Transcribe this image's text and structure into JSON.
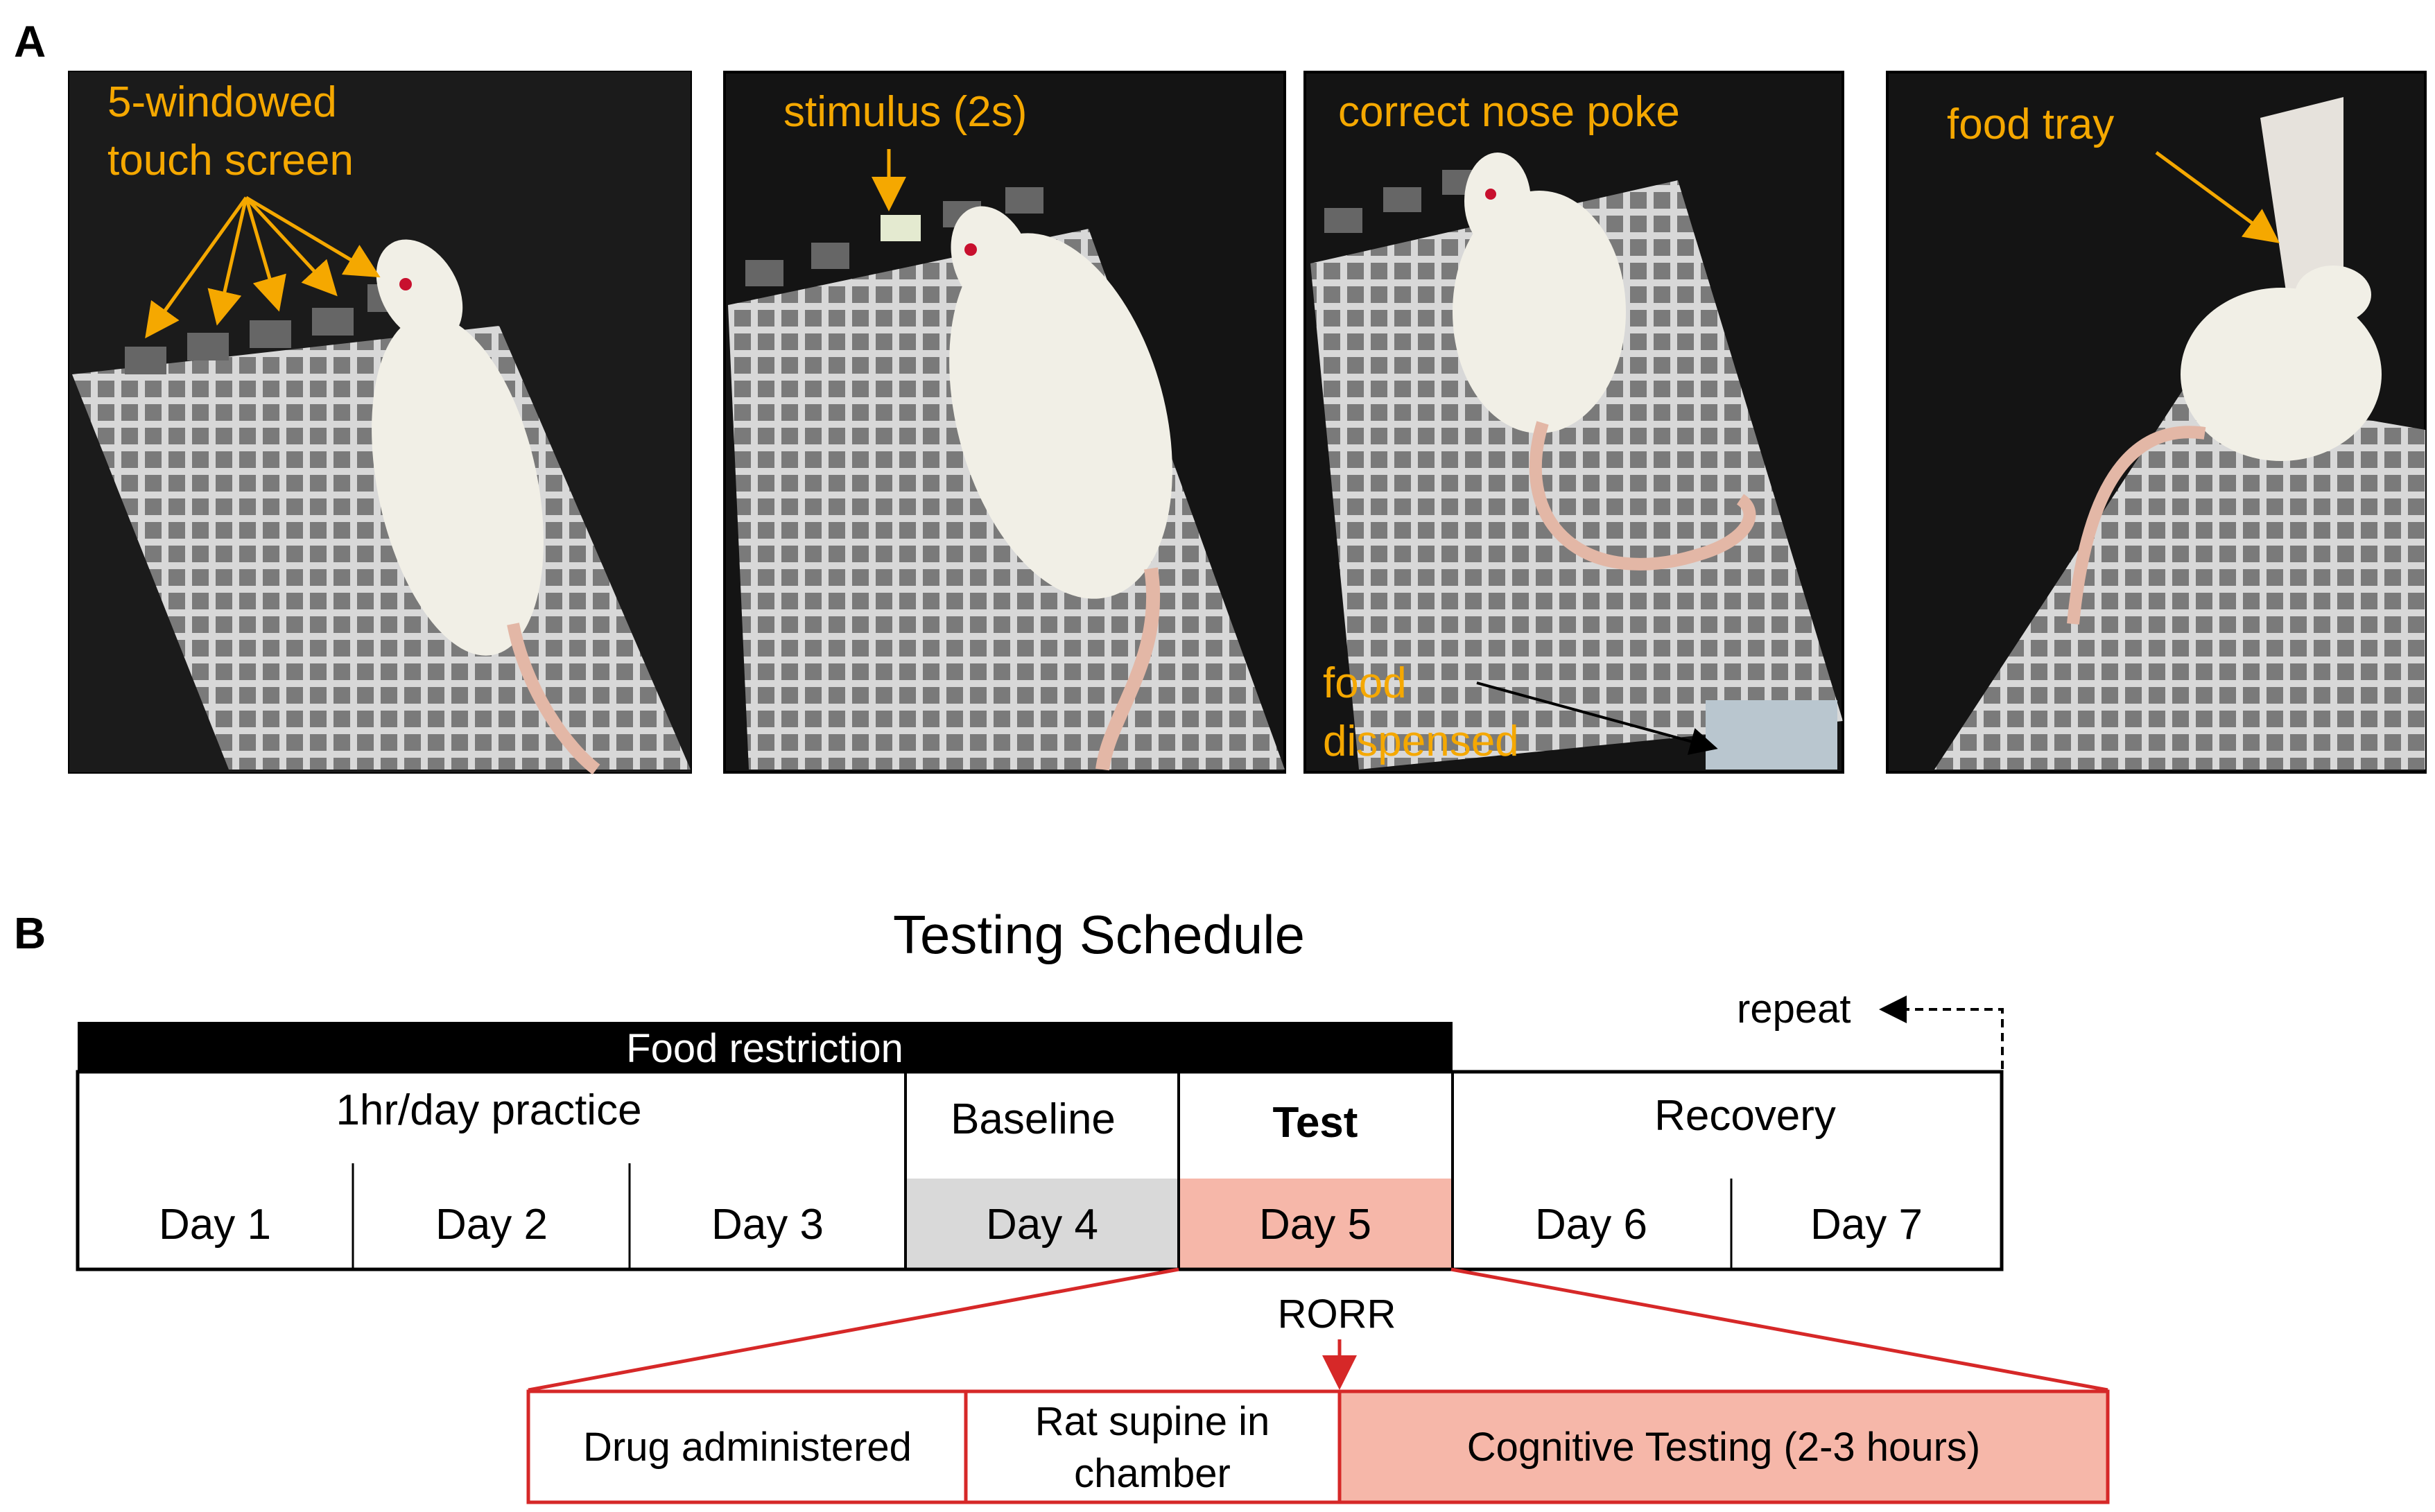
{
  "panels": {
    "a": "A",
    "b": "B"
  },
  "photos": [
    {
      "labels": [
        "5-windowed",
        "touch screen"
      ]
    },
    {
      "labels": [
        "stimulus (2s)"
      ]
    },
    {
      "labels": [
        "correct nose poke",
        "food",
        "dispensed"
      ]
    },
    {
      "labels": [
        "food tray"
      ]
    }
  ],
  "schedule": {
    "title": "Testing Schedule",
    "food_restriction": "Food restriction",
    "repeat": "repeat",
    "groups": {
      "practice": "1hr/day practice",
      "baseline": "Baseline",
      "test": "Test",
      "recovery": "Recovery"
    },
    "days": [
      "Day 1",
      "Day 2",
      "Day 3",
      "Day 4",
      "Day 5",
      "Day 6",
      "Day 7"
    ],
    "rorr": "RORR",
    "test_day_steps": {
      "drug": "Drug administered",
      "supine": [
        "Rat supine in",
        "chamber"
      ],
      "cognitive": "Cognitive Testing (2-3 hours)"
    }
  },
  "colors": {
    "label_orange": "#F5A800",
    "baseline_gray": "#D9D9D9",
    "test_pink": "#F6B7A9",
    "expansion_red": "#D62828"
  }
}
